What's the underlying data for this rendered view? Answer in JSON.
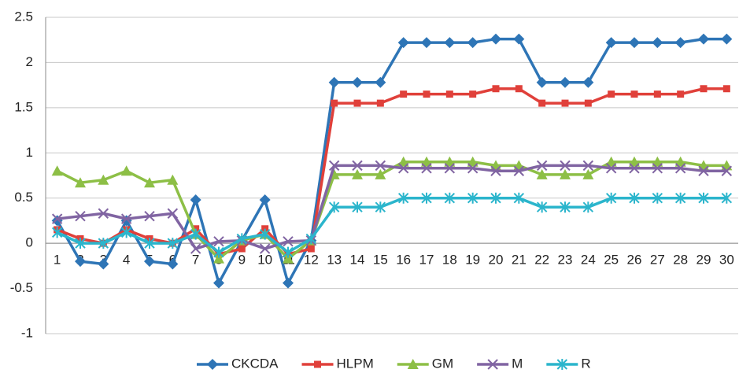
{
  "chart_data": {
    "type": "line",
    "categories": [
      "1",
      "2",
      "3",
      "4",
      "5",
      "6",
      "7",
      "8",
      "9",
      "10",
      "11",
      "12",
      "13",
      "14",
      "15",
      "16",
      "17",
      "18",
      "19",
      "20",
      "21",
      "22",
      "23",
      "24",
      "25",
      "26",
      "27",
      "28",
      "29",
      "30"
    ],
    "series": [
      {
        "name": "CKCDA",
        "color": "#2e75b6",
        "marker": "diamond",
        "values": [
          0.25,
          -0.2,
          -0.23,
          0.25,
          -0.2,
          -0.23,
          0.48,
          -0.44,
          0.03,
          0.48,
          -0.44,
          0.03,
          1.78,
          1.78,
          1.78,
          2.22,
          2.22,
          2.22,
          2.22,
          2.26,
          2.26,
          1.78,
          1.78,
          1.78,
          2.22,
          2.22,
          2.22,
          2.22,
          2.26,
          2.26
        ]
      },
      {
        "name": "HLPM",
        "color": "#e0403a",
        "marker": "square",
        "values": [
          0.15,
          0.05,
          0,
          0.15,
          0.05,
          0,
          0.16,
          -0.12,
          -0.06,
          0.16,
          -0.12,
          -0.06,
          1.55,
          1.55,
          1.55,
          1.65,
          1.65,
          1.65,
          1.65,
          1.71,
          1.71,
          1.55,
          1.55,
          1.55,
          1.65,
          1.65,
          1.65,
          1.65,
          1.71,
          1.71
        ]
      },
      {
        "name": "GM",
        "color": "#8dbf46",
        "marker": "triangle",
        "values": [
          0.8,
          0.67,
          0.7,
          0.8,
          0.67,
          0.7,
          0.1,
          -0.17,
          0.03,
          0.1,
          -0.17,
          0.03,
          0.76,
          0.76,
          0.76,
          0.9,
          0.9,
          0.9,
          0.9,
          0.86,
          0.86,
          0.76,
          0.76,
          0.76,
          0.9,
          0.9,
          0.9,
          0.9,
          0.86,
          0.86
        ]
      },
      {
        "name": "M",
        "color": "#8064a2",
        "marker": "x",
        "values": [
          0.27,
          0.3,
          0.33,
          0.27,
          0.3,
          0.33,
          -0.06,
          0.02,
          0.03,
          -0.06,
          0.02,
          0.03,
          0.86,
          0.86,
          0.86,
          0.83,
          0.83,
          0.83,
          0.83,
          0.8,
          0.8,
          0.86,
          0.86,
          0.86,
          0.83,
          0.83,
          0.83,
          0.83,
          0.8,
          0.8
        ]
      },
      {
        "name": "R",
        "color": "#2bb5cc",
        "marker": "star",
        "values": [
          0.12,
          0,
          0,
          0.12,
          0,
          0,
          0.1,
          -0.1,
          0.05,
          0.1,
          -0.1,
          0.05,
          0.4,
          0.4,
          0.4,
          0.5,
          0.5,
          0.5,
          0.5,
          0.5,
          0.5,
          0.4,
          0.4,
          0.4,
          0.5,
          0.5,
          0.5,
          0.5,
          0.5,
          0.5
        ]
      }
    ],
    "ylim": [
      -1,
      2.5
    ],
    "yticks": [
      -1,
      -0.5,
      0,
      0.5,
      1,
      1.5,
      2,
      2.5
    ],
    "grid": true,
    "legend": "bottom"
  }
}
